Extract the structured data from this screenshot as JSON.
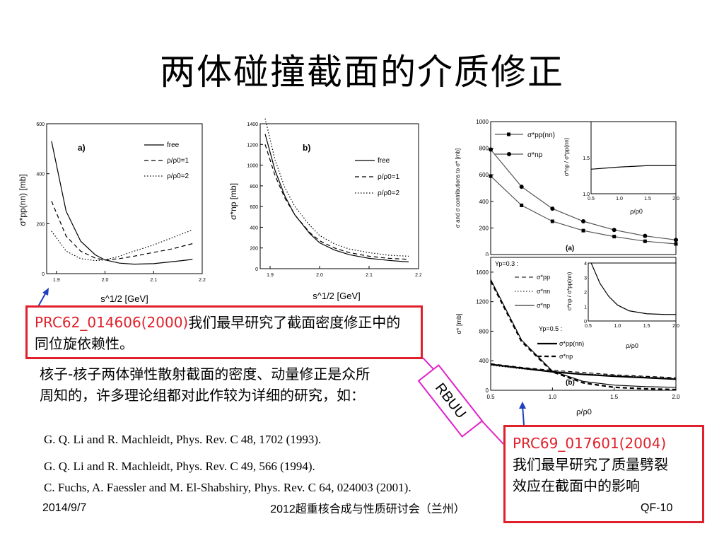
{
  "title": "两体碰撞截面的介质修正",
  "box_left": {
    "ref": "PRC62_014606(2000)",
    "text": "我们最早研究了截面密度修正中的同位旋依赖性。"
  },
  "description": "核子-核子两体弹性散射截面的密度、动量修正是众所周知的，许多理论组都对此作较为详细的研究，如：",
  "references": [
    "G. Q. Li and R. Machleidt, Phys. Rev. C 48, 1702 (1993).",
    "G. Q. Li and R. Machleidt, Phys. Rev. C 49, 566 (1994).",
    "C. Fuchs, A. Faessler and M. El-Shabshiry, Phys. Rev. C 64, 024003 (2001)."
  ],
  "box_right": {
    "ref": "PRC69_017601(2004)",
    "text": "我们最早研究了质量劈裂效应在截面中的影响"
  },
  "rbuu_label": "RBUU",
  "footer": {
    "date": "2014/9/7",
    "conference": "2012超重核合成与性质研讨会（兰州）",
    "code": "QF-10"
  },
  "chart_data": [
    {
      "type": "line",
      "panel": "a)",
      "xlabel": "s^1/2 [GeV]",
      "ylabel": "σ*pp(nn) [mb]",
      "xlim": [
        1.88,
        2.2
      ],
      "ylim": [
        0,
        600
      ],
      "xticks": [
        "1.9",
        "2.0",
        "2.1",
        "2.2"
      ],
      "yticks": [
        "0",
        "200",
        "400",
        "600"
      ],
      "x": [
        1.89,
        1.92,
        1.95,
        1.98,
        2.0,
        2.03,
        2.06,
        2.1,
        2.14,
        2.18
      ],
      "series": [
        {
          "name": "free",
          "style": "solid",
          "values": [
            530,
            250,
            130,
            75,
            55,
            42,
            38,
            40,
            48,
            57
          ]
        },
        {
          "name": "ρ/ρ0=1",
          "style": "dashed",
          "values": [
            290,
            150,
            90,
            62,
            55,
            60,
            70,
            85,
            100,
            120
          ]
        },
        {
          "name": "ρ/ρ0=2",
          "style": "dotted",
          "values": [
            170,
            90,
            60,
            52,
            55,
            70,
            90,
            115,
            145,
            175
          ]
        }
      ]
    },
    {
      "type": "line",
      "panel": "b)",
      "xlabel": "s^1/2 [GeV]",
      "ylabel": "σ*np [mb]",
      "xlim": [
        1.88,
        2.2
      ],
      "ylim": [
        0,
        1400
      ],
      "xticks": [
        "1.9",
        "2.0",
        "2.1",
        "2.2"
      ],
      "yticks": [
        "0",
        "200",
        "400",
        "600",
        "800",
        "1000",
        "1200",
        "1400"
      ],
      "x": [
        1.89,
        1.91,
        1.93,
        1.95,
        1.98,
        2.0,
        2.03,
        2.06,
        2.1,
        2.14,
        2.18
      ],
      "series": [
        {
          "name": "free",
          "style": "solid",
          "values": [
            1300,
            950,
            700,
            520,
            340,
            250,
            180,
            135,
            100,
            80,
            65
          ]
        },
        {
          "name": "ρ/ρ0=1",
          "style": "dashed",
          "values": [
            1200,
            900,
            680,
            520,
            350,
            270,
            200,
            155,
            120,
            100,
            90
          ]
        },
        {
          "name": "ρ/ρ0=2",
          "style": "dotted",
          "values": [
            1450,
            1050,
            780,
            600,
            420,
            320,
            240,
            190,
            155,
            130,
            120
          ]
        }
      ]
    },
    {
      "type": "line",
      "panel": "(a)",
      "xlabel": "",
      "ylabel": "σ and σ contributions to σ* [mb]",
      "xlim": [
        0.5,
        2.0
      ],
      "ylim": [
        0,
        1000
      ],
      "yticks": [
        "0",
        "200",
        "400",
        "600",
        "800",
        "1000"
      ],
      "x": [
        0.5,
        0.75,
        1.0,
        1.25,
        1.5,
        1.75,
        2.0
      ],
      "series": [
        {
          "name": "σ*pp(nn)",
          "style": "square",
          "values": [
            590,
            370,
            250,
            180,
            135,
            100,
            80
          ]
        },
        {
          "name": "σ*np",
          "style": "circle",
          "values": [
            790,
            510,
            345,
            250,
            185,
            140,
            110
          ]
        }
      ],
      "inset": {
        "ylabel": "σ*np / σ*pp(nn)",
        "xlabel": "ρ/ρ0",
        "xlim": [
          0.5,
          2.0
        ],
        "ylim": [
          1.0,
          2.0
        ],
        "xticks": [
          "0.5",
          "1.0",
          "1.5",
          "2.0"
        ],
        "yticks": [
          "1.0",
          "1.5"
        ],
        "x": [
          0.5,
          1.0,
          1.5,
          2.0
        ],
        "values": [
          1.34,
          1.37,
          1.39,
          1.39
        ]
      }
    },
    {
      "type": "line",
      "panel": "(b)",
      "xlabel": "ρ/ρ0",
      "ylabel": "σ* [mb]",
      "xlim": [
        0.5,
        2.0
      ],
      "ylim": [
        0,
        1800
      ],
      "xticks": [
        "0.5",
        "1.0",
        "1.5",
        "2.0"
      ],
      "yticks": [
        "0",
        "400",
        "800",
        "1200",
        "1600"
      ],
      "legend_groups": [
        "Yp=0.3 :",
        "Yp=0.5 :"
      ],
      "x": [
        0.5,
        0.75,
        1.0,
        1.25,
        1.5,
        1.75,
        2.0
      ],
      "series": [
        {
          "name": "σ*pp",
          "style": "dashed",
          "values": [
            360,
            310,
            270,
            240,
            210,
            190,
            170
          ]
        },
        {
          "name": "σ*nn",
          "style": "dotted",
          "values": [
            340,
            290,
            250,
            220,
            200,
            180,
            160
          ]
        },
        {
          "name": "σ*np",
          "style": "solid",
          "values": [
            1500,
            680,
            260,
            120,
            70,
            50,
            40
          ]
        },
        {
          "name": "σ*pp(nn)",
          "style": "thick-solid",
          "values": [
            350,
            300,
            250,
            215,
            190,
            170,
            150
          ]
        },
        {
          "name": "σ*np",
          "style": "thick-dashed",
          "values": [
            1480,
            660,
            250,
            100,
            40,
            20,
            10
          ]
        }
      ],
      "inset": {
        "ylabel": "σ*np / σ*pp(nn)",
        "xlabel": "ρ/ρ0",
        "xlim": [
          0.5,
          2.0
        ],
        "ylim": [
          0,
          4
        ],
        "xticks": [
          "0.5",
          "1.0",
          "1.5",
          "2.0"
        ],
        "yticks": [
          "0",
          "1",
          "2",
          "3",
          "4"
        ],
        "x": [
          0.55,
          0.7,
          0.85,
          1.0,
          1.2,
          1.5,
          1.8,
          2.0
        ],
        "values": [
          4.0,
          2.6,
          1.7,
          1.1,
          0.7,
          0.5,
          0.45,
          0.45
        ]
      }
    }
  ]
}
